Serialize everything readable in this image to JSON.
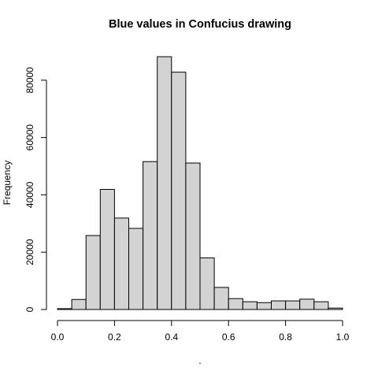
{
  "chart_data": {
    "type": "bar",
    "title": "Blue values in Confucius drawing",
    "xlabel": ".",
    "ylabel": "Frequency",
    "bin_edges": [
      0.0,
      0.05,
      0.1,
      0.15,
      0.2,
      0.25,
      0.3,
      0.35,
      0.4,
      0.45,
      0.5,
      0.55,
      0.6,
      0.65,
      0.7,
      0.75,
      0.8,
      0.85,
      0.9,
      0.95,
      1.0
    ],
    "values": [
      300,
      3500,
      25800,
      41900,
      31900,
      28300,
      51600,
      88200,
      82800,
      51100,
      18000,
      7700,
      3800,
      2700,
      2400,
      3000,
      3000,
      3600,
      2700,
      500
    ],
    "xlim": [
      0,
      1
    ],
    "ylim": [
      0,
      88200
    ],
    "x_ticks": [
      0.0,
      0.2,
      0.4,
      0.6,
      0.8,
      1.0
    ],
    "x_tick_labels": [
      "0.0",
      "0.2",
      "0.4",
      "0.6",
      "0.8",
      "1.0"
    ],
    "y_ticks": [
      0,
      20000,
      40000,
      60000,
      80000
    ],
    "y_tick_labels": [
      "0",
      "20000",
      "40000",
      "60000",
      "80000"
    ],
    "bar_fill": "#d3d3d3",
    "bar_stroke": "#000000",
    "grid": false,
    "legend": "none"
  }
}
